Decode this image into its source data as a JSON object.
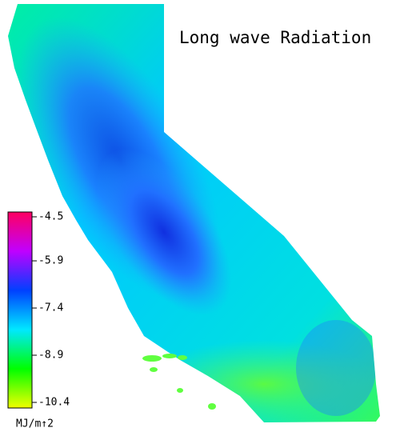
{
  "title": "Long wave Radiation",
  "colorbar": {
    "label": "MJ/m↑2",
    "lim": [
      -10.4,
      -4.5
    ],
    "ticks": [
      -4.5,
      -5.9,
      -7.4,
      -8.9,
      -10.4
    ],
    "colors": [
      "#f0ff00",
      "#00ff00",
      "#00e8ff",
      "#0040ff",
      "#c000ff",
      "#ff0060"
    ]
  }
}
